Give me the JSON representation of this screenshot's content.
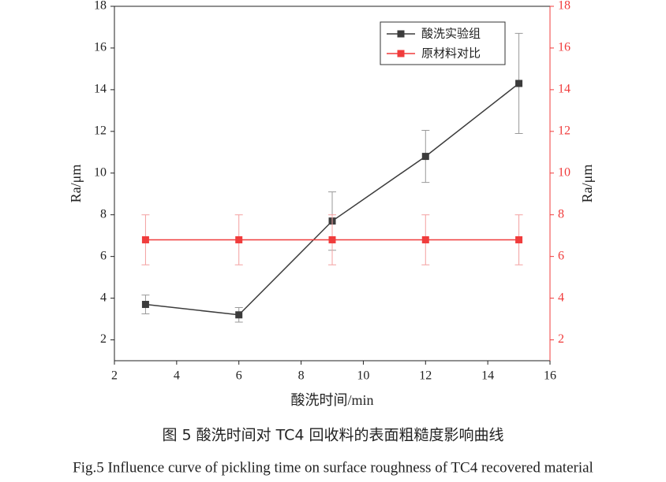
{
  "chart_data": {
    "type": "line",
    "x": [
      3,
      6,
      9,
      12,
      15
    ],
    "series": [
      {
        "name": "酸洗实验组",
        "color": "#3c3c3c",
        "values": [
          3.7,
          3.2,
          7.7,
          10.8,
          14.3
        ],
        "errors": [
          0.45,
          0.35,
          1.4,
          1.25,
          2.4
        ]
      },
      {
        "name": "原材料对比",
        "color": "#f03c3c",
        "axis": "y2",
        "values": [
          6.8,
          6.8,
          6.8,
          6.8,
          6.8
        ],
        "errors": [
          1.2,
          1.2,
          1.2,
          1.2,
          1.2
        ]
      }
    ],
    "xlabel": "酸洗时间/min",
    "ylabel": "Ra/μm",
    "y2label": "Ra/μm",
    "xlim": [
      2,
      16
    ],
    "xticks": [
      2,
      4,
      6,
      8,
      10,
      12,
      14,
      16
    ],
    "ylim": [
      1,
      18
    ],
    "yticks": [
      2,
      4,
      6,
      8,
      10,
      12,
      14,
      16,
      18
    ],
    "y2lim": [
      1,
      18
    ],
    "y2ticks": [
      2,
      4,
      6,
      8,
      10,
      12,
      14,
      16,
      18
    ],
    "y2color": "#f03c3c",
    "legend": "top-right"
  },
  "caption": {
    "chinese": "图 5  酸洗时间对 TC4 回收料的表面粗糙度影响曲线",
    "english": "Fig.5 Influence curve of pickling time on surface roughness of TC4 recovered material"
  }
}
